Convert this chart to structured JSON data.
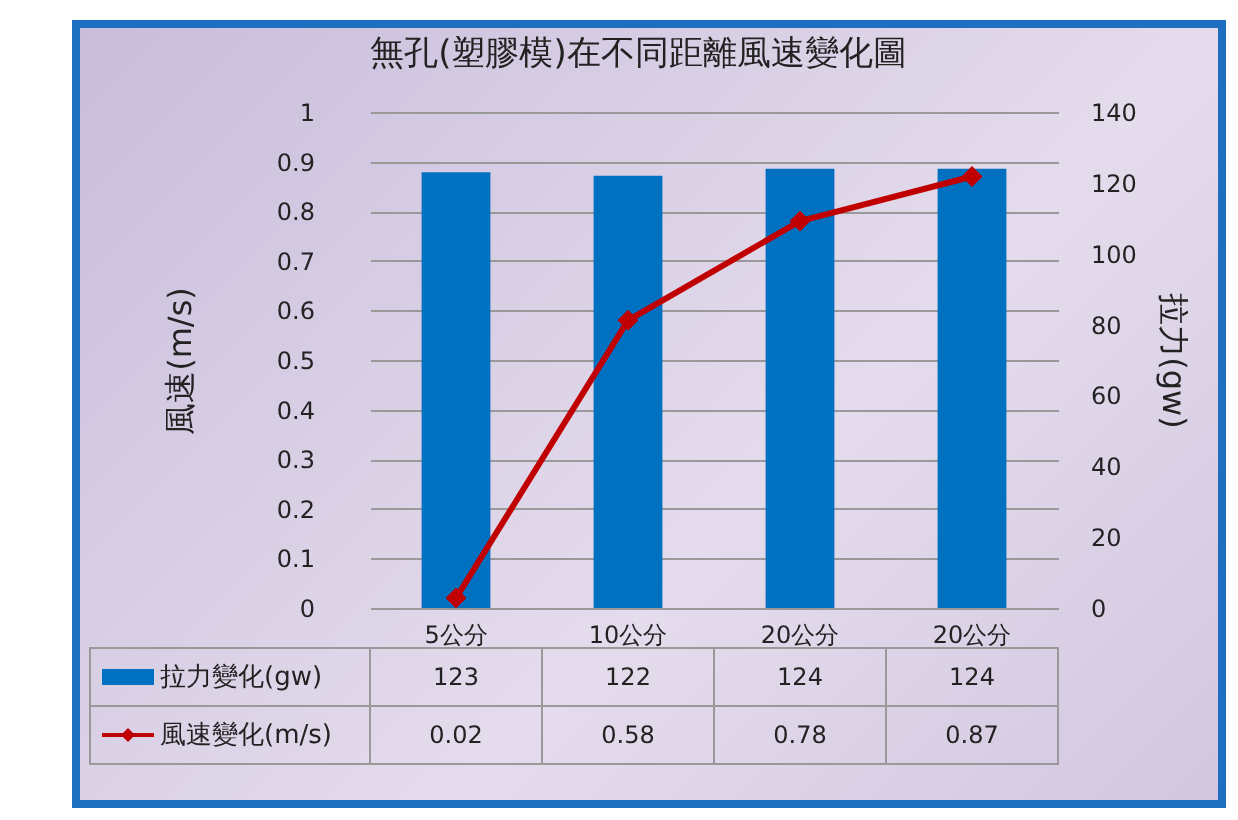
{
  "chart_data": {
    "type": "bar",
    "title": "無孔(塑膠模)在不同距離風速變化圖",
    "ylabel": "風速(m/s)",
    "y2label": "拉力(gw)",
    "categories": [
      "5公分",
      "10公分",
      "20公分",
      "20公分"
    ],
    "series": [
      {
        "name": "拉力變化(gw)",
        "axis": "y2",
        "color": "#0070c0",
        "values": [
          123,
          122,
          124,
          124
        ]
      },
      {
        "name": "風速變化(m/s)",
        "type": "line",
        "color": "#c00000",
        "marker": "diamond",
        "line_style": "solid",
        "values": [
          0.02,
          0.58,
          0.78,
          0.87
        ]
      }
    ],
    "ylim": [
      0,
      1
    ],
    "yticks": [
      0,
      0.1,
      0.2,
      0.3,
      0.4,
      0.5,
      0.6,
      0.7,
      0.8,
      0.9,
      1
    ],
    "y2lim": [
      0,
      140
    ],
    "y2ticks": [
      0,
      20,
      40,
      60,
      80,
      100,
      120,
      140
    ],
    "grid": "y",
    "legend": "bottom",
    "data_labels": true
  }
}
